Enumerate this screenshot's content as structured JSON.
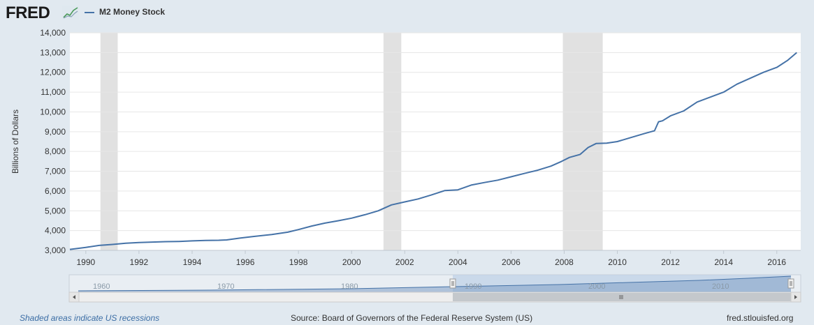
{
  "header": {
    "logo": "FRED",
    "legend_label": "M2 Money Stock",
    "series_color": "#4572a7"
  },
  "footer": {
    "recession_note": "Shaded areas indicate US recessions",
    "source": "Source: Board of Governors of the Federal Reserve System (US)",
    "site": "fred.stlouisfed.org"
  },
  "navigator": {
    "labels": [
      "1960",
      "1970",
      "1980",
      "1990",
      "2000",
      "2010"
    ]
  },
  "chart_data": {
    "type": "line",
    "title": "",
    "xlabel": "",
    "ylabel": "Billions of Dollars",
    "xlim": [
      1989.4,
      2016.9
    ],
    "ylim": [
      3000,
      14000
    ],
    "x_ticks": [
      "1990",
      "1992",
      "1994",
      "1996",
      "1998",
      "2000",
      "2002",
      "2004",
      "2006",
      "2008",
      "2010",
      "2012",
      "2014",
      "2016"
    ],
    "y_ticks": [
      "3,000",
      "4,000",
      "5,000",
      "6,000",
      "7,000",
      "8,000",
      "9,000",
      "10,000",
      "11,000",
      "12,000",
      "13,000",
      "14,000"
    ],
    "grid": true,
    "legend": "top-left",
    "recessions": [
      [
        1990.55,
        1991.2
      ],
      [
        2001.2,
        2001.87
      ],
      [
        2007.95,
        2009.45
      ]
    ],
    "series": [
      {
        "name": "M2 Money Stock",
        "color": "#4572a7",
        "x": [
          1989.4,
          1990.0,
          1990.5,
          1991.0,
          1991.5,
          1992.0,
          1992.5,
          1993.0,
          1993.5,
          1994.0,
          1994.5,
          1995.0,
          1995.3,
          1995.8,
          1996.3,
          1997.0,
          1997.6,
          1998.0,
          1998.5,
          1999.0,
          1999.5,
          2000.0,
          2000.5,
          2001.0,
          2001.5,
          2002.0,
          2002.5,
          2003.0,
          2003.5,
          2003.75,
          2004.0,
          2004.5,
          2005.0,
          2005.5,
          2006.0,
          2006.5,
          2007.0,
          2007.5,
          2007.9,
          2008.2,
          2008.6,
          2008.9,
          2009.2,
          2009.6,
          2010.0,
          2010.5,
          2011.0,
          2011.4,
          2011.55,
          2011.7,
          2012.0,
          2012.5,
          2013.0,
          2013.5,
          2014.0,
          2014.5,
          2015.0,
          2015.5,
          2016.0,
          2016.4,
          2016.75
        ],
        "values": [
          3050,
          3150,
          3250,
          3300,
          3360,
          3400,
          3420,
          3440,
          3450,
          3480,
          3500,
          3510,
          3530,
          3620,
          3700,
          3800,
          3920,
          4050,
          4230,
          4380,
          4500,
          4630,
          4800,
          5000,
          5300,
          5450,
          5600,
          5800,
          6020,
          6040,
          6060,
          6300,
          6430,
          6550,
          6720,
          6890,
          7050,
          7260,
          7500,
          7700,
          7850,
          8200,
          8400,
          8420,
          8500,
          8700,
          8900,
          9050,
          9500,
          9550,
          9800,
          10050,
          10500,
          10750,
          11000,
          11400,
          11700,
          12000,
          12250,
          12600,
          13000
        ]
      }
    ]
  }
}
